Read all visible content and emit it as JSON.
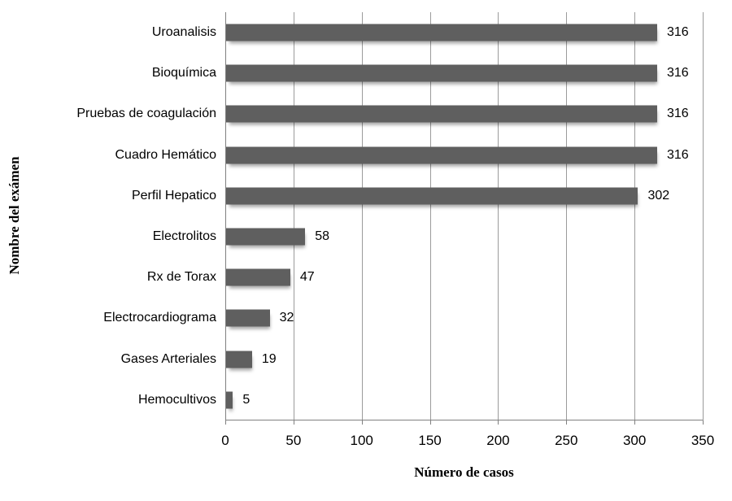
{
  "chart_data": {
    "type": "bar",
    "orientation": "horizontal",
    "categories": [
      "Uroanalisis",
      "Bioquímica",
      "Pruebas de coagulación",
      "Cuadro Hemático",
      "Perfil Hepatico",
      "Electrolitos",
      "Rx de Torax",
      "Electrocardiograma",
      "Gases Arteriales",
      "Hemocultivos"
    ],
    "values": [
      316,
      316,
      316,
      316,
      302,
      58,
      47,
      32,
      19,
      5
    ],
    "data_labels": [
      "316",
      "316",
      "316",
      "316",
      "302",
      "58",
      "47",
      "32",
      "19",
      "5"
    ],
    "title": "",
    "xlabel": "Número de casos",
    "ylabel": "Nombre del exámen",
    "xlim": [
      0,
      350
    ],
    "xticks": [
      "0",
      "50",
      "100",
      "150",
      "200",
      "250",
      "300",
      "350"
    ],
    "grid": "vertical-only",
    "legend": "none",
    "bar_color": "#5f5f5f",
    "gridline_color": "#9b9b9b",
    "axis_color": "#808080"
  }
}
